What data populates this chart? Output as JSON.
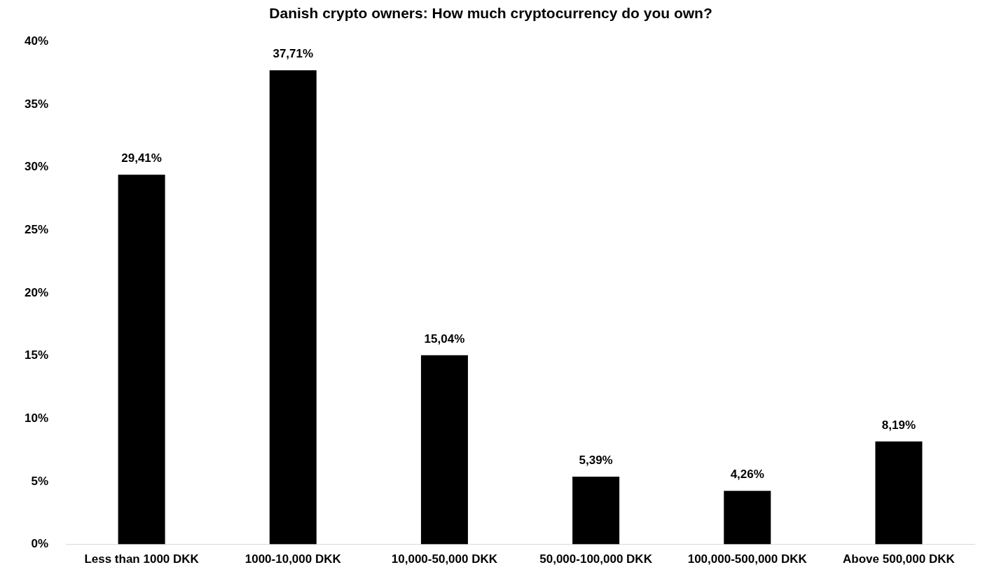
{
  "chart_data": {
    "type": "bar",
    "title": "Danish crypto owners: How much cryptocurrency do you own?",
    "categories": [
      "Less than 1000 DKK",
      "1000-10,000 DKK",
      "10,000-50,000 DKK",
      "50,000-100,000 DKK",
      "100,000-500,000 DKK",
      "Above 500,000 DKK"
    ],
    "values": [
      29.41,
      37.71,
      15.04,
      5.39,
      4.26,
      8.19
    ],
    "value_labels": [
      "29,41%",
      "37,71%",
      "15,04%",
      "5,39%",
      "4,26%",
      "8,19%"
    ],
    "color": "#000000",
    "ylim": [
      0,
      40
    ],
    "yticks": [
      {
        "value": 0,
        "label": "0%"
      },
      {
        "value": 5,
        "label": "5%"
      },
      {
        "value": 10,
        "label": "10%"
      },
      {
        "value": 15,
        "label": "15%"
      },
      {
        "value": 20,
        "label": "20%"
      },
      {
        "value": 25,
        "label": "25%"
      },
      {
        "value": 30,
        "label": "30%"
      },
      {
        "value": 35,
        "label": "35%"
      },
      {
        "value": 40,
        "label": "40%"
      }
    ],
    "grid": false,
    "legend": false
  }
}
